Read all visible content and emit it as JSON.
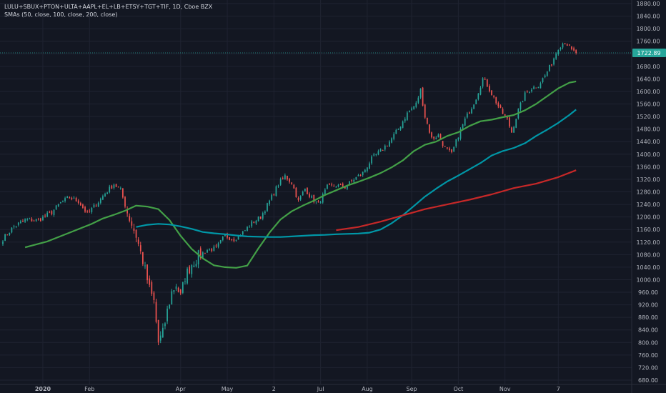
{
  "legend": {
    "symbol": "LULU+SBUX+PTON+ULTA+AAPL+EL+LB+ETSY+TGT+TIF, 1D, Cboe BZX",
    "study": "SMAs (50, close, 100, close, 200, close)"
  },
  "colors": {
    "background": "#131722",
    "grid": "#1f2331",
    "axis_text": "#b2b5be",
    "up": "#26a69a",
    "down": "#ef5350",
    "sma50": "#43a047",
    "sma100": "#0097a7",
    "sma200": "#c62828",
    "price_tag": "#26a69a"
  },
  "chart_data": {
    "type": "candlestick",
    "ylim": [
      680,
      1880
    ],
    "y_ticks": [
      680,
      720,
      760,
      800,
      840,
      880,
      920,
      960,
      1000,
      1040,
      1080,
      1120,
      1160,
      1200,
      1240,
      1280,
      1320,
      1360,
      1400,
      1440,
      1480,
      1520,
      1560,
      1600,
      1640,
      1680,
      1720,
      1760,
      1800,
      1840,
      1880
    ],
    "y_tick_labels": [
      "680.00",
      "720.00",
      "760.00",
      "800.00",
      "840.00",
      "880.00",
      "920.00",
      "960.00",
      "1000.00",
      "1040.00",
      "1080.00",
      "1120.00",
      "1160.00",
      "1200.00",
      "1240.00",
      "1280.00",
      "1320.00",
      "1360.00",
      "1400.00",
      "1440.00",
      "1480.00",
      "1520.00",
      "1560.00",
      "1600.00",
      "1640.00",
      "1680.00",
      "1720.00",
      "1760.00",
      "1800.00",
      "1840.00",
      "1880.00"
    ],
    "x_labels": [
      {
        "label": "2020",
        "day": 18
      },
      {
        "label": "Feb",
        "day": 39
      },
      {
        "label": "Apr",
        "day": 80
      },
      {
        "label": "May",
        "day": 101
      },
      {
        "label": "2",
        "day": 122
      },
      {
        "label": "Jul",
        "day": 143
      },
      {
        "label": "Aug",
        "day": 164
      },
      {
        "label": "Sep",
        "day": 184
      },
      {
        "label": "Oct",
        "day": 205
      },
      {
        "label": "Nov",
        "day": 226
      },
      {
        "label": "7",
        "day": 250
      }
    ],
    "x_range": [
      0,
      284
    ],
    "last_price": 1722.89,
    "last_price_label": "1722.89",
    "close_anchors": [
      [
        0,
        1130
      ],
      [
        5,
        1170
      ],
      [
        10,
        1190
      ],
      [
        16,
        1190
      ],
      [
        22,
        1215
      ],
      [
        26,
        1245
      ],
      [
        30,
        1262
      ],
      [
        34,
        1250
      ],
      [
        38,
        1210
      ],
      [
        42,
        1240
      ],
      [
        46,
        1275
      ],
      [
        50,
        1305
      ],
      [
        53,
        1285
      ],
      [
        56,
        1215
      ],
      [
        60,
        1140
      ],
      [
        63,
        1060
      ],
      [
        66,
        970
      ],
      [
        68,
        930
      ],
      [
        70,
        800
      ],
      [
        72,
        830
      ],
      [
        74,
        900
      ],
      [
        76,
        960
      ],
      [
        78,
        985
      ],
      [
        80,
        945
      ],
      [
        82,
        1010
      ],
      [
        85,
        1050
      ],
      [
        88,
        1075
      ],
      [
        92,
        1095
      ],
      [
        96,
        1100
      ],
      [
        100,
        1140
      ],
      [
        104,
        1130
      ],
      [
        108,
        1150
      ],
      [
        112,
        1180
      ],
      [
        116,
        1200
      ],
      [
        120,
        1250
      ],
      [
        124,
        1305
      ],
      [
        127,
        1330
      ],
      [
        130,
        1310
      ],
      [
        133,
        1250
      ],
      [
        136,
        1290
      ],
      [
        139,
        1260
      ],
      [
        142,
        1240
      ],
      [
        146,
        1295
      ],
      [
        150,
        1300
      ],
      [
        154,
        1295
      ],
      [
        158,
        1320
      ],
      [
        162,
        1340
      ],
      [
        166,
        1385
      ],
      [
        170,
        1410
      ],
      [
        174,
        1440
      ],
      [
        178,
        1480
      ],
      [
        182,
        1530
      ],
      [
        186,
        1560
      ],
      [
        188,
        1605
      ],
      [
        190,
        1520
      ],
      [
        193,
        1450
      ],
      [
        196,
        1460
      ],
      [
        199,
        1420
      ],
      [
        202,
        1400
      ],
      [
        205,
        1460
      ],
      [
        208,
        1510
      ],
      [
        211,
        1550
      ],
      [
        213,
        1580
      ],
      [
        216,
        1640
      ],
      [
        218,
        1620
      ],
      [
        221,
        1580
      ],
      [
        224,
        1540
      ],
      [
        227,
        1510
      ],
      [
        229,
        1470
      ],
      [
        232,
        1540
      ],
      [
        235,
        1590
      ],
      [
        238,
        1610
      ],
      [
        241,
        1620
      ],
      [
        244,
        1650
      ],
      [
        247,
        1690
      ],
      [
        250,
        1740
      ],
      [
        253,
        1760
      ],
      [
        256,
        1730
      ],
      [
        258,
        1722.89
      ]
    ],
    "series": [
      {
        "name": "SMA 50",
        "x": [
          10,
          20,
          30,
          40,
          45,
          50,
          55,
          60,
          65,
          70,
          75,
          80,
          85,
          90,
          95,
          100,
          105,
          110,
          115,
          120,
          125,
          130,
          135,
          140,
          145,
          150,
          155,
          160,
          165,
          170,
          175,
          180,
          185,
          190,
          195,
          200,
          205,
          210,
          215,
          220,
          225,
          230,
          235,
          240,
          245,
          250,
          255,
          258
        ],
        "values": [
          1103,
          1122,
          1150,
          1178,
          1195,
          1207,
          1220,
          1236,
          1233,
          1225,
          1190,
          1140,
          1098,
          1068,
          1046,
          1040,
          1038,
          1045,
          1100,
          1150,
          1192,
          1218,
          1236,
          1252,
          1270,
          1285,
          1300,
          1312,
          1325,
          1340,
          1358,
          1380,
          1410,
          1430,
          1440,
          1458,
          1470,
          1490,
          1505,
          1510,
          1518,
          1525,
          1540,
          1560,
          1585,
          1610,
          1628,
          1632
        ]
      },
      {
        "name": "SMA 100",
        "x": [
          60,
          65,
          70,
          75,
          80,
          85,
          90,
          95,
          100,
          105,
          110,
          115,
          120,
          125,
          130,
          135,
          140,
          145,
          150,
          155,
          160,
          165,
          170,
          175,
          180,
          185,
          190,
          195,
          200,
          205,
          210,
          215,
          220,
          225,
          230,
          235,
          240,
          245,
          250,
          255,
          258
        ],
        "values": [
          1168,
          1175,
          1178,
          1176,
          1170,
          1162,
          1152,
          1148,
          1145,
          1141,
          1138,
          1137,
          1136,
          1136,
          1138,
          1140,
          1142,
          1143,
          1145,
          1146,
          1147,
          1150,
          1160,
          1180,
          1205,
          1235,
          1265,
          1290,
          1313,
          1332,
          1352,
          1372,
          1396,
          1410,
          1420,
          1435,
          1458,
          1478,
          1500,
          1525,
          1542
        ]
      },
      {
        "name": "SMA 200",
        "x": [
          150,
          160,
          170,
          180,
          190,
          200,
          210,
          220,
          230,
          240,
          250,
          258
        ],
        "values": [
          1158,
          1168,
          1185,
          1205,
          1225,
          1240,
          1255,
          1272,
          1292,
          1306,
          1327,
          1349
        ]
      }
    ]
  }
}
